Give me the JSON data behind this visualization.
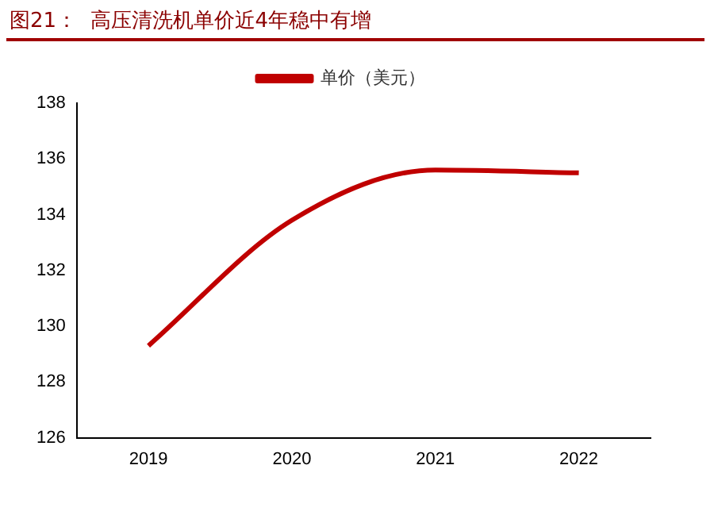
{
  "chart_data": {
    "type": "line",
    "title": "图21：  高压清洗机单价近4年稳中有增",
    "categories": [
      "2019",
      "2020",
      "2021",
      "2022"
    ],
    "series": [
      {
        "name": "单价（美元）",
        "color": "#c00000",
        "values": [
          129.3,
          133.8,
          135.6,
          135.5
        ]
      }
    ],
    "ylim": [
      126,
      138
    ],
    "yticks": [
      126,
      128,
      130,
      132,
      134,
      136,
      138
    ],
    "grid": false,
    "legend": "top",
    "marker": "none",
    "line_style": "solid"
  }
}
